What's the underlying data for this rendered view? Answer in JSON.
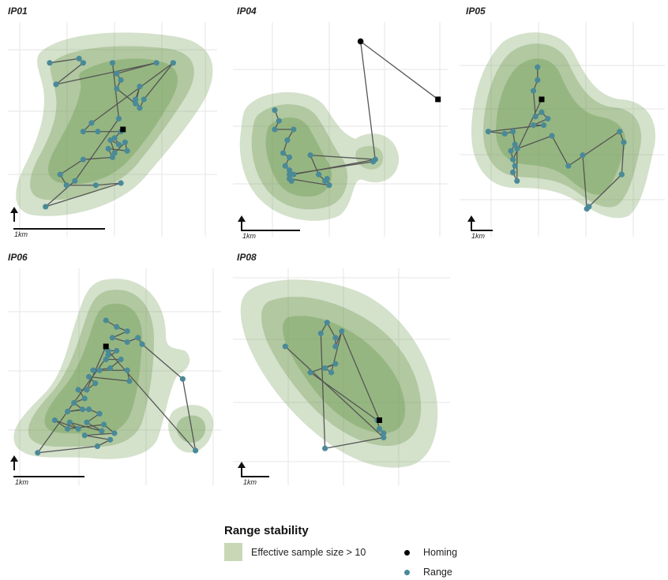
{
  "colors": {
    "fill": "#6f9a52",
    "range_point": "#4a8a98",
    "homing_point": "#000000",
    "track_line": "#555555",
    "grid": "#e6e6e6",
    "legend_swatch": "#c9d7b6"
  },
  "icons": {
    "north_arrow": "north-arrow-icon"
  },
  "legend": {
    "title": "Range stability",
    "area_label": "Effective sample size > 10",
    "homing_label": "Homing",
    "range_label": "Range"
  },
  "chart_data": [
    {
      "type": "scatter",
      "panel": "IP01",
      "scale_label": "1km",
      "range_points": [
        [
          0.2,
          0.19
        ],
        [
          0.34,
          0.17
        ],
        [
          0.36,
          0.19
        ],
        [
          0.23,
          0.29
        ],
        [
          0.5,
          0.19
        ],
        [
          0.52,
          0.24
        ],
        [
          0.54,
          0.27
        ],
        [
          0.52,
          0.31
        ],
        [
          0.61,
          0.38
        ],
        [
          0.63,
          0.3
        ],
        [
          0.61,
          0.36
        ],
        [
          0.63,
          0.4
        ],
        [
          0.65,
          0.36
        ],
        [
          0.71,
          0.19
        ],
        [
          0.79,
          0.19
        ],
        [
          0.4,
          0.47
        ],
        [
          0.36,
          0.51
        ],
        [
          0.43,
          0.51
        ],
        [
          0.54,
          0.51
        ],
        [
          0.51,
          0.54
        ],
        [
          0.53,
          0.57
        ],
        [
          0.49,
          0.55
        ],
        [
          0.51,
          0.61
        ],
        [
          0.56,
          0.56
        ],
        [
          0.57,
          0.6
        ],
        [
          0.48,
          0.59
        ],
        [
          0.5,
          0.63
        ],
        [
          0.36,
          0.64
        ],
        [
          0.25,
          0.71
        ],
        [
          0.28,
          0.76
        ],
        [
          0.42,
          0.76
        ],
        [
          0.54,
          0.75
        ],
        [
          0.18,
          0.86
        ],
        [
          0.32,
          0.74
        ],
        [
          0.53,
          0.45
        ]
      ],
      "homing_points": [
        [
          0.55,
          0.5
        ]
      ],
      "track_order": [
        0,
        1,
        2,
        3,
        13,
        5,
        6,
        7,
        8,
        9,
        10,
        11,
        12,
        14,
        15,
        16,
        17,
        18,
        19,
        20,
        21,
        22,
        23,
        24,
        25,
        26,
        27,
        28,
        29,
        30,
        31,
        32,
        33,
        34,
        4
      ]
    },
    {
      "type": "scatter",
      "panel": "IP04",
      "scale_label": "1km",
      "range_points": [
        [
          0.2,
          0.41
        ],
        [
          0.22,
          0.46
        ],
        [
          0.2,
          0.5
        ],
        [
          0.29,
          0.5
        ],
        [
          0.26,
          0.55
        ],
        [
          0.24,
          0.61
        ],
        [
          0.27,
          0.63
        ],
        [
          0.25,
          0.67
        ],
        [
          0.27,
          0.69
        ],
        [
          0.29,
          0.71
        ],
        [
          0.37,
          0.62
        ],
        [
          0.41,
          0.71
        ],
        [
          0.44,
          0.74
        ],
        [
          0.45,
          0.73
        ],
        [
          0.46,
          0.76
        ],
        [
          0.27,
          0.73
        ],
        [
          0.28,
          0.74
        ],
        [
          0.27,
          0.71
        ],
        [
          0.68,
          0.64
        ],
        [
          0.67,
          0.65
        ]
      ],
      "homing_points": [
        [
          0.61,
          0.09
        ],
        [
          0.98,
          0.36
        ]
      ],
      "track_order": [
        0,
        1,
        2,
        3,
        4,
        5,
        6,
        7,
        8,
        9,
        18,
        10,
        11,
        12,
        13,
        14,
        15,
        16,
        17,
        19
      ]
    },
    {
      "type": "scatter",
      "panel": "IP05",
      "scale_label": "1km",
      "range_points": [
        [
          0.38,
          0.21
        ],
        [
          0.38,
          0.27
        ],
        [
          0.36,
          0.32
        ],
        [
          0.37,
          0.44
        ],
        [
          0.4,
          0.42
        ],
        [
          0.43,
          0.45
        ],
        [
          0.36,
          0.48
        ],
        [
          0.41,
          0.48
        ],
        [
          0.14,
          0.51
        ],
        [
          0.22,
          0.52
        ],
        [
          0.26,
          0.51
        ],
        [
          0.27,
          0.57
        ],
        [
          0.25,
          0.6
        ],
        [
          0.26,
          0.64
        ],
        [
          0.27,
          0.67
        ],
        [
          0.26,
          0.7
        ],
        [
          0.28,
          0.74
        ],
        [
          0.28,
          0.59
        ],
        [
          0.45,
          0.53
        ],
        [
          0.53,
          0.67
        ],
        [
          0.6,
          0.62
        ],
        [
          0.78,
          0.51
        ],
        [
          0.8,
          0.56
        ],
        [
          0.79,
          0.71
        ],
        [
          0.63,
          0.86
        ],
        [
          0.62,
          0.87
        ]
      ],
      "homing_points": [
        [
          0.4,
          0.36
        ]
      ],
      "track_order": [
        0,
        1,
        2,
        3,
        4,
        5,
        6,
        7,
        8,
        9,
        10,
        11,
        12,
        13,
        14,
        15,
        16,
        17,
        18,
        19,
        21,
        22,
        23,
        24,
        25,
        20
      ]
    },
    {
      "type": "scatter",
      "panel": "IP06",
      "scale_label": "1km",
      "range_points": [
        [
          0.46,
          0.24
        ],
        [
          0.51,
          0.27
        ],
        [
          0.56,
          0.29
        ],
        [
          0.49,
          0.32
        ],
        [
          0.56,
          0.34
        ],
        [
          0.61,
          0.32
        ],
        [
          0.63,
          0.35
        ],
        [
          0.47,
          0.38
        ],
        [
          0.51,
          0.38
        ],
        [
          0.46,
          0.42
        ],
        [
          0.53,
          0.42
        ],
        [
          0.48,
          0.46
        ],
        [
          0.4,
          0.47
        ],
        [
          0.43,
          0.47
        ],
        [
          0.56,
          0.47
        ],
        [
          0.57,
          0.52
        ],
        [
          0.38,
          0.5
        ],
        [
          0.41,
          0.53
        ],
        [
          0.37,
          0.56
        ],
        [
          0.33,
          0.56
        ],
        [
          0.36,
          0.6
        ],
        [
          0.31,
          0.62
        ],
        [
          0.35,
          0.65
        ],
        [
          0.28,
          0.66
        ],
        [
          0.38,
          0.65
        ],
        [
          0.43,
          0.67
        ],
        [
          0.37,
          0.71
        ],
        [
          0.44,
          0.75
        ],
        [
          0.29,
          0.71
        ],
        [
          0.33,
          0.74
        ],
        [
          0.22,
          0.7
        ],
        [
          0.28,
          0.74
        ],
        [
          0.45,
          0.72
        ],
        [
          0.5,
          0.76
        ],
        [
          0.36,
          0.77
        ],
        [
          0.48,
          0.79
        ],
        [
          0.42,
          0.82
        ],
        [
          0.14,
          0.85
        ],
        [
          0.82,
          0.51
        ],
        [
          0.88,
          0.84
        ],
        [
          0.47,
          0.4
        ]
      ],
      "homing_points": [
        [
          0.46,
          0.36
        ]
      ],
      "track_order": [
        0,
        1,
        2,
        3,
        4,
        5,
        6,
        38,
        39,
        7,
        8,
        9,
        10,
        11,
        12,
        13,
        14,
        15,
        16,
        17,
        18,
        19,
        20,
        21,
        22,
        23,
        24,
        25,
        26,
        27,
        28,
        29,
        30,
        31,
        32,
        33,
        34,
        35,
        36,
        37,
        40
      ]
    },
    {
      "type": "scatter",
      "panel": "IP08",
      "scale_label": "1km",
      "range_points": [
        [
          0.25,
          0.36
        ],
        [
          0.42,
          0.3
        ],
        [
          0.45,
          0.25
        ],
        [
          0.49,
          0.32
        ],
        [
          0.49,
          0.36
        ],
        [
          0.52,
          0.29
        ],
        [
          0.47,
          0.48
        ],
        [
          0.44,
          0.46
        ],
        [
          0.49,
          0.44
        ],
        [
          0.37,
          0.48
        ],
        [
          0.69,
          0.7
        ],
        [
          0.7,
          0.74
        ],
        [
          0.72,
          0.76
        ],
        [
          0.72,
          0.78
        ],
        [
          0.44,
          0.83
        ]
      ],
      "homing_points": [
        [
          0.7,
          0.7
        ]
      ],
      "track_order": [
        0,
        13,
        14,
        1,
        2,
        3,
        4,
        5,
        6,
        7,
        8,
        9,
        10,
        11,
        12
      ]
    }
  ]
}
